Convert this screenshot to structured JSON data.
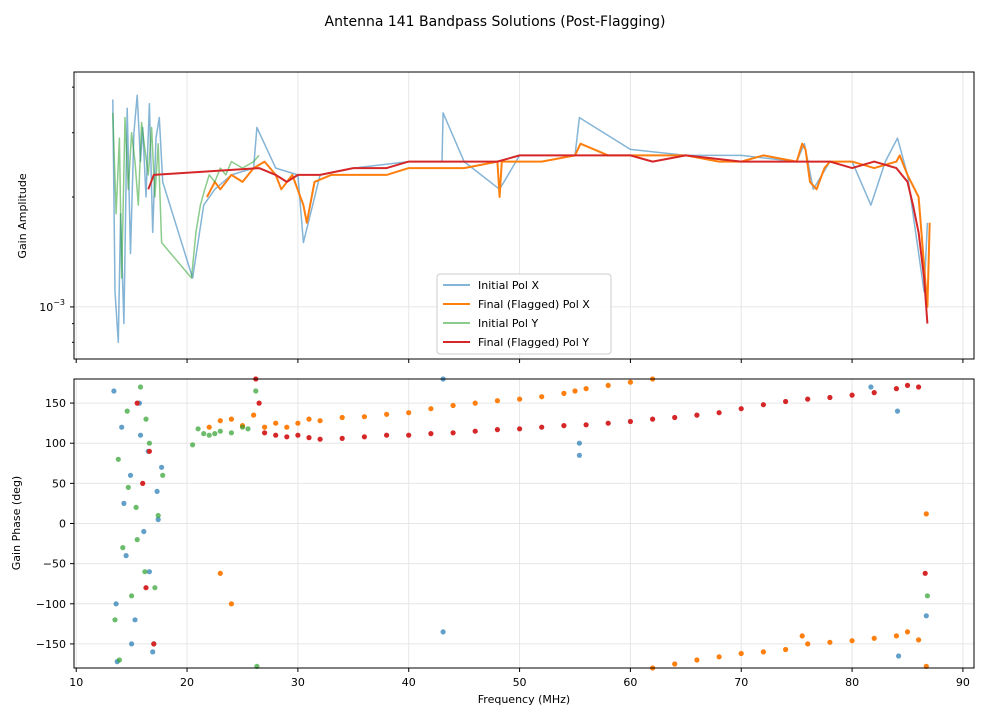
{
  "colors": {
    "pol_x": "#1f77b4",
    "pol_x_final": "#ff7f0e",
    "pol_y": "#2ca02c",
    "pol_y_final": "#d62728",
    "grid": "#e6e6e6"
  },
  "chart_data": {
    "title": "Antenna 141 Bandpass Solutions (Post-Flagging)",
    "xlabel": "Frequency (MHz)",
    "xlim": [
      9.8,
      91
    ],
    "xticks": [
      10,
      20,
      30,
      40,
      50,
      60,
      70,
      80,
      90
    ],
    "xtick_labels": [
      "10",
      "20",
      "30",
      "40",
      "50",
      "60",
      "70",
      "80",
      "90"
    ],
    "legend": {
      "placement": "lower-center",
      "entries": [
        "Initial Pol X",
        "Final (Flagged) Pol X",
        "Initial Pol Y",
        "Final (Flagged) Pol Y"
      ]
    },
    "amplitude": {
      "type": "line",
      "ylabel": "Gain Amplitude",
      "yscale": "log",
      "ylim": [
        0.00072,
        0.0044
      ],
      "yticks": [
        0.001
      ],
      "ytick_labels": [
        "10",
        "−3"
      ],
      "series": [
        {
          "name": "Initial Pol X",
          "x": [
            13.3,
            13.5,
            13.8,
            14.0,
            14.3,
            14.6,
            14.9,
            15.2,
            15.5,
            15.8,
            16.0,
            16.3,
            16.6,
            16.9,
            17.2,
            17.5,
            17.8,
            20.5,
            21.5,
            22.5,
            24,
            26,
            26.3,
            28,
            30,
            30.5,
            32,
            35,
            40,
            43,
            43.1,
            45,
            48.2,
            50,
            55,
            55.4,
            60,
            65,
            70,
            75,
            75.7,
            76.5,
            78,
            80,
            81.7,
            83,
            84.1,
            85,
            86.5,
            86.8
          ],
          "y": [
            0.0037,
            0.0011,
            0.0008,
            0.0018,
            0.0009,
            0.0035,
            0.0014,
            0.003,
            0.0038,
            0.0025,
            0.0031,
            0.002,
            0.0036,
            0.0016,
            0.0029,
            0.0033,
            0.0022,
            0.0012,
            0.0019,
            0.0021,
            0.0023,
            0.0024,
            0.0031,
            0.0024,
            0.0023,
            0.0015,
            0.0023,
            0.0024,
            0.0025,
            0.0025,
            0.0034,
            0.0025,
            0.0021,
            0.0026,
            0.0026,
            0.0033,
            0.0027,
            0.0026,
            0.0026,
            0.0025,
            0.0028,
            0.0021,
            0.0025,
            0.0025,
            0.0019,
            0.0025,
            0.0029,
            0.0023,
            0.0011,
            0.0017
          ]
        },
        {
          "name": "Final (Flagged) Pol X",
          "x": [
            21.8,
            22.5,
            23,
            24,
            25,
            26,
            27,
            28,
            28.5,
            29.5,
            30.5,
            30.8,
            31.5,
            33,
            35,
            38,
            40,
            43,
            45,
            48,
            48.2,
            48.4,
            50,
            52,
            55,
            55.5,
            58,
            60,
            62,
            65,
            68,
            70,
            72,
            75,
            75.5,
            75.8,
            76.2,
            76.8,
            77.5,
            78,
            80,
            82,
            84,
            84.3,
            85,
            86,
            86.8,
            87
          ],
          "y": [
            0.002,
            0.0022,
            0.0021,
            0.0023,
            0.0022,
            0.0024,
            0.0025,
            0.0023,
            0.0021,
            0.0023,
            0.0019,
            0.0017,
            0.0022,
            0.0023,
            0.0023,
            0.0023,
            0.0024,
            0.0024,
            0.0024,
            0.0025,
            0.002,
            0.0025,
            0.0025,
            0.0025,
            0.0026,
            0.0028,
            0.0026,
            0.0026,
            0.0026,
            0.0026,
            0.0025,
            0.0025,
            0.0026,
            0.0025,
            0.0028,
            0.0027,
            0.0022,
            0.0021,
            0.0024,
            0.0025,
            0.0025,
            0.0024,
            0.0025,
            0.0026,
            0.0023,
            0.002,
            0.001,
            0.0017
          ]
        },
        {
          "name": "Initial Pol Y",
          "x": [
            13.3,
            13.6,
            13.9,
            14.1,
            14.4,
            14.7,
            15.0,
            15.3,
            15.6,
            15.9,
            16.2,
            16.5,
            16.8,
            17.1,
            17.4,
            17.7,
            20.4,
            20.8,
            21.2,
            21.6,
            22.0,
            22.5,
            23,
            23.5,
            24,
            25,
            26,
            26.5
          ],
          "y": [
            0.0034,
            0.0018,
            0.0029,
            0.0012,
            0.0033,
            0.0021,
            0.003,
            0.0025,
            0.0019,
            0.0032,
            0.0027,
            0.0023,
            0.0031,
            0.002,
            0.0028,
            0.0015,
            0.0012,
            0.0016,
            0.0019,
            0.0021,
            0.0023,
            0.0022,
            0.0024,
            0.0023,
            0.0025,
            0.0024,
            0.0025,
            0.0026
          ]
        },
        {
          "name": "Final (Flagged) Pol Y",
          "x": [
            16.5,
            17.0,
            26.5,
            28,
            29,
            30,
            32,
            35,
            38,
            40,
            42,
            45,
            48,
            50,
            55,
            58,
            60,
            62,
            65,
            70,
            75,
            76,
            78,
            80,
            82,
            84,
            85,
            85.5,
            86,
            86.5,
            86.8
          ],
          "y": [
            0.0021,
            0.0023,
            0.0024,
            0.0023,
            0.0022,
            0.0023,
            0.0023,
            0.0024,
            0.0024,
            0.0025,
            0.0025,
            0.0025,
            0.0025,
            0.0026,
            0.0026,
            0.0026,
            0.0026,
            0.0025,
            0.0026,
            0.0025,
            0.0025,
            0.0025,
            0.0025,
            0.0024,
            0.0025,
            0.0024,
            0.0022,
            0.0019,
            0.0016,
            0.0012,
            0.0009
          ]
        }
      ]
    },
    "phase": {
      "type": "scatter",
      "ylabel": "Gain Phase (deg)",
      "ylim": [
        -180,
        180
      ],
      "yticks": [
        -150,
        -100,
        -50,
        0,
        50,
        100,
        150
      ],
      "ytick_labels": [
        "−150",
        "−100",
        "−50",
        "0",
        "50",
        "100",
        "150"
      ],
      "series": [
        {
          "name": "Initial Pol X",
          "x": [
            13.4,
            13.7,
            14.1,
            14.5,
            14.9,
            15.3,
            15.7,
            16.1,
            16.5,
            16.9,
            17.3,
            17.7,
            13.6,
            14.3,
            15.0,
            15.8,
            16.6,
            17.4,
            43.1,
            43.1,
            55.4,
            55.4,
            81.7,
            84.1,
            84.2,
            86.7
          ],
          "y": [
            165,
            -172,
            120,
            -40,
            60,
            -120,
            150,
            -10,
            90,
            -160,
            40,
            70,
            -100,
            25,
            -150,
            110,
            -60,
            5,
            180,
            -135,
            100,
            85,
            170,
            140,
            -165,
            -115
          ]
        },
        {
          "name": "Final (Flagged) Pol X",
          "x": [
            22,
            23,
            24,
            25,
            26,
            27,
            28,
            29,
            30,
            31,
            32,
            34,
            36,
            38,
            40,
            42,
            44,
            46,
            48,
            50,
            52,
            54,
            55,
            56,
            58,
            60,
            62,
            23,
            24,
            62,
            64,
            66,
            68,
            70,
            72,
            74,
            75.5,
            76,
            78,
            80,
            82,
            84,
            85,
            86,
            86.7,
            86.7
          ],
          "y": [
            120,
            128,
            130,
            122,
            135,
            120,
            125,
            120,
            125,
            130,
            128,
            132,
            133,
            136,
            138,
            143,
            147,
            150,
            153,
            155,
            158,
            162,
            165,
            168,
            172,
            176,
            180,
            -62,
            -100,
            -180,
            -175,
            -170,
            -166,
            -162,
            -160,
            -157,
            -140,
            -150,
            -148,
            -146,
            -143,
            -140,
            -135,
            -145,
            12,
            -178
          ]
        },
        {
          "name": "Initial Pol Y",
          "x": [
            13.5,
            13.8,
            14.2,
            14.6,
            15.0,
            15.4,
            15.8,
            16.2,
            16.6,
            17.0,
            17.4,
            17.8,
            13.9,
            14.7,
            15.5,
            16.3,
            17.1,
            20.5,
            21,
            21.5,
            22,
            22.5,
            23,
            24,
            25,
            25.5,
            26.2,
            26.3,
            86.8
          ],
          "y": [
            -120,
            80,
            -30,
            140,
            -90,
            20,
            170,
            -60,
            100,
            -150,
            10,
            60,
            -170,
            45,
            -20,
            130,
            -80,
            98,
            118,
            112,
            110,
            112,
            115,
            113,
            120,
            118,
            165,
            -178,
            -90
          ]
        },
        {
          "name": "Final (Flagged) Pol Y",
          "x": [
            15.5,
            16.0,
            16.3,
            16.6,
            17.0,
            26.2,
            26.5,
            27,
            28,
            29,
            30,
            31,
            32,
            34,
            36,
            38,
            40,
            42,
            44,
            46,
            48,
            50,
            52,
            54,
            56,
            58,
            60,
            62,
            64,
            66,
            68,
            70,
            72,
            74,
            76,
            78,
            80,
            82,
            84,
            85,
            86,
            86.6
          ],
          "y": [
            150,
            50,
            -80,
            90,
            -150,
            180,
            150,
            113,
            110,
            108,
            110,
            107,
            105,
            106,
            108,
            110,
            110,
            112,
            113,
            115,
            117,
            118,
            120,
            122,
            123,
            125,
            127,
            130,
            132,
            135,
            138,
            143,
            148,
            152,
            155,
            157,
            160,
            163,
            168,
            172,
            170,
            -62
          ]
        }
      ]
    }
  }
}
